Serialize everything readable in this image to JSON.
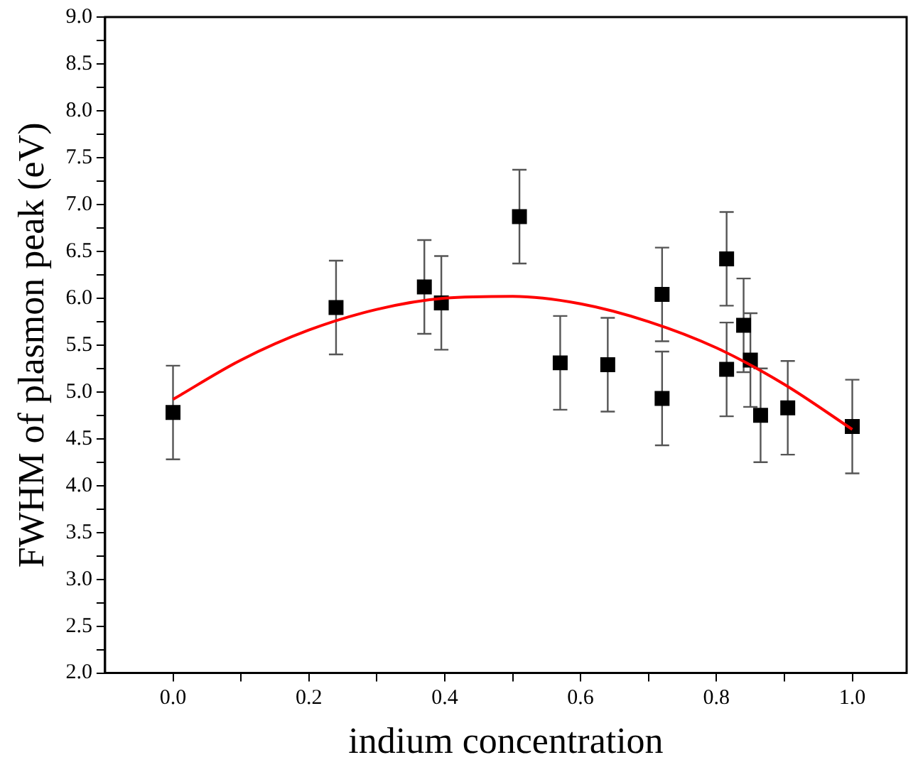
{
  "chart_data": {
    "type": "scatter",
    "xlabel": "indium concentration",
    "ylabel": "FWHM of plasmon peak (eV)",
    "xlim": [
      -0.1,
      1.08
    ],
    "ylim": [
      2,
      9
    ],
    "xticks": [
      {
        "value": 0,
        "label": "0.0"
      },
      {
        "value": 0.1,
        "label": null
      },
      {
        "value": 0.2,
        "label": "0.2"
      },
      {
        "value": 0.3,
        "label": null
      },
      {
        "value": 0.4,
        "label": "0.4"
      },
      {
        "value": 0.5,
        "label": null
      },
      {
        "value": 0.6,
        "label": "0.6"
      },
      {
        "value": 0.7,
        "label": null
      },
      {
        "value": 0.8,
        "label": "0.8"
      },
      {
        "value": 0.9,
        "label": null
      },
      {
        "value": 1,
        "label": "1.0"
      }
    ],
    "yticks": [
      {
        "value": 2,
        "label": "2.0"
      },
      {
        "value": 2.25,
        "label": null
      },
      {
        "value": 2.5,
        "label": "2.5"
      },
      {
        "value": 2.75,
        "label": null
      },
      {
        "value": 3,
        "label": "3.0"
      },
      {
        "value": 3.25,
        "label": null
      },
      {
        "value": 3.5,
        "label": "3.5"
      },
      {
        "value": 3.75,
        "label": null
      },
      {
        "value": 4,
        "label": "4.0"
      },
      {
        "value": 4.25,
        "label": null
      },
      {
        "value": 4.5,
        "label": "4.5"
      },
      {
        "value": 4.75,
        "label": null
      },
      {
        "value": 5,
        "label": "5.0"
      },
      {
        "value": 5.25,
        "label": null
      },
      {
        "value": 5.5,
        "label": "5.5"
      },
      {
        "value": 5.75,
        "label": null
      },
      {
        "value": 6,
        "label": "6.0"
      },
      {
        "value": 6.25,
        "label": null
      },
      {
        "value": 6.5,
        "label": "6.5"
      },
      {
        "value": 6.75,
        "label": null
      },
      {
        "value": 7,
        "label": "7.0"
      },
      {
        "value": 7.25,
        "label": null
      },
      {
        "value": 7.5,
        "label": "7.5"
      },
      {
        "value": 7.75,
        "label": null
      },
      {
        "value": 8,
        "label": "8.0"
      },
      {
        "value": 8.25,
        "label": null
      },
      {
        "value": 8.5,
        "label": "8.5"
      },
      {
        "value": 8.75,
        "label": null
      },
      {
        "value": 9,
        "label": "9.0"
      }
    ],
    "grid": false,
    "legend": false,
    "series": [
      {
        "color": "#000000",
        "marker": "square",
        "x": [
          0,
          0.24,
          0.37,
          0.395,
          0.51,
          0.57,
          0.64,
          0.72,
          0.72,
          0.815,
          0.815,
          0.84,
          0.85,
          0.865,
          0.905,
          1.0
        ],
        "values": [
          4.78,
          5.9,
          6.12,
          5.95,
          6.87,
          5.31,
          5.29,
          6.04,
          4.93,
          6.42,
          5.24,
          5.71,
          5.34,
          4.75,
          4.83,
          4.63
        ],
        "errors": [
          0.5,
          0.5,
          0.5,
          0.5,
          0.5,
          0.5,
          0.5,
          0.5,
          0.5,
          0.5,
          0.5,
          0.5,
          0.5,
          0.5,
          0.5,
          0.5
        ]
      },
      {
        "type": "line",
        "color": "#ff0000",
        "marker": "none",
        "line_style": "solid",
        "x": [
          0,
          0.1,
          0.2,
          0.3,
          0.4,
          0.5,
          0.6,
          0.7,
          0.8,
          0.9,
          1.0
        ],
        "values": [
          4.92,
          5.34,
          5.66,
          5.88,
          6.0,
          6.02,
          5.94,
          5.75,
          5.47,
          5.08,
          4.6
        ]
      }
    ]
  }
}
